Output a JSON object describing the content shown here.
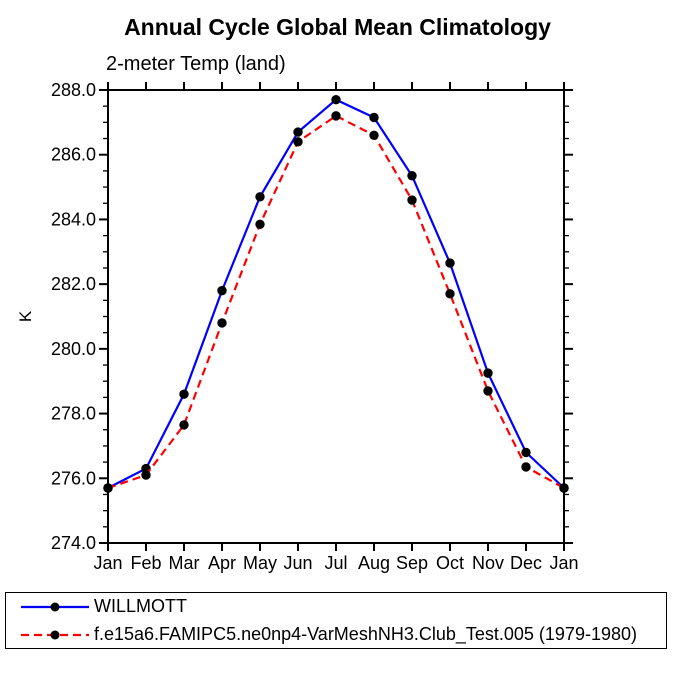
{
  "chart_data": {
    "type": "line",
    "title": "Annual Cycle Global Mean Climatology",
    "subtitle": "2-meter Temp (land)",
    "ylabel": "K",
    "x_categories": [
      "Jan",
      "Feb",
      "Mar",
      "Apr",
      "May",
      "Jun",
      "Jul",
      "Aug",
      "Sep",
      "Oct",
      "Nov",
      "Dec",
      "Jan"
    ],
    "ylim": [
      274.0,
      288.0
    ],
    "y_major_step": 2.0,
    "y_minor_step": 0.5,
    "y_tick_decimals": 1,
    "grid": false,
    "legend_position": "bottom-left",
    "axis_color": "#000000",
    "marker_color": "#000000",
    "series": [
      {
        "name": "WILLMOTT",
        "color": "#0000ff",
        "style": "solid",
        "values": [
          275.7,
          276.3,
          278.6,
          281.8,
          284.7,
          286.7,
          287.7,
          287.15,
          285.35,
          282.65,
          279.25,
          276.8,
          275.7
        ]
      },
      {
        "name": "f.e15a6.FAMIPC5.ne0np4-VarMeshNH3.Club_Test.005 (1979-1980)",
        "color": "#ff0000",
        "style": "dashed",
        "values": [
          275.7,
          276.1,
          277.65,
          280.8,
          283.85,
          286.4,
          287.2,
          286.6,
          284.6,
          281.7,
          278.7,
          276.35,
          275.7
        ]
      }
    ]
  }
}
